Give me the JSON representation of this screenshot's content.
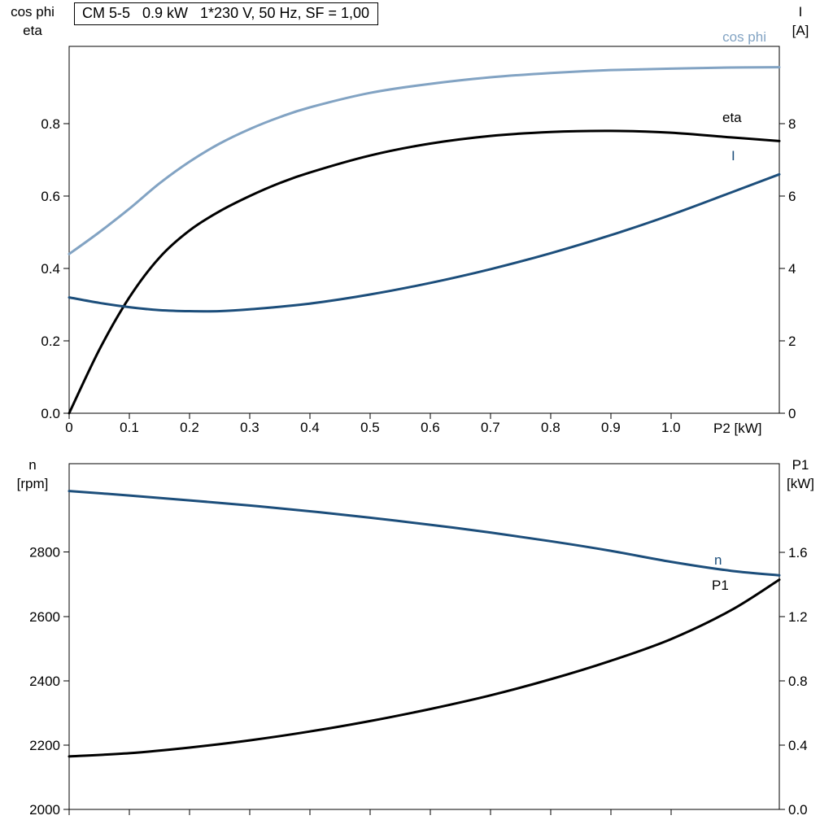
{
  "title_box": {
    "text": "CM 5-5   0.9 kW   1*230 V, 50 Hz, SF = 1,00"
  },
  "colors": {
    "cos_phi": "#82a3c3",
    "eta": "#000000",
    "current": "#1c4e7b",
    "speed": "#1c4e7b",
    "p1": "#000000",
    "axis": "#000000"
  },
  "top_chart": {
    "axis_titles": {
      "left": [
        "cos phi",
        "eta"
      ],
      "right": [
        "I",
        "[A]"
      ],
      "x": "P2 [kW]"
    },
    "curve_labels": {
      "cos_phi": "cos phi",
      "eta": "eta",
      "current": "I"
    }
  },
  "bottom_chart": {
    "axis_titles": {
      "left": [
        "n",
        "[rpm]"
      ],
      "right": [
        "P1",
        "[kW]"
      ]
    },
    "curve_labels": {
      "speed": "n",
      "input_power": "P1"
    }
  },
  "chart_data": [
    {
      "type": "line",
      "title": "CM 5-5 0.9 kW 1*230 V, 50 Hz, SF = 1,00",
      "xlabel": "P2 [kW]",
      "x_range": [
        0,
        1.18
      ],
      "x_ticks": [
        0,
        0.1,
        0.2,
        0.3,
        0.4,
        0.5,
        0.6,
        0.7,
        0.8,
        0.9,
        1.0
      ],
      "x_tick_labels": [
        "0",
        "0.1",
        "0.2",
        "0.3",
        "0.4",
        "0.5",
        "0.6",
        "0.7",
        "0.8",
        "0.9",
        "1.0"
      ],
      "grid": false,
      "left_axis": {
        "label": "cos phi / eta",
        "range": [
          0,
          1.0135
        ],
        "ticks": [
          0,
          0.2,
          0.4,
          0.6,
          0.8
        ],
        "tick_labels": [
          "0.0",
          "0.2",
          "0.4",
          "0.6",
          "0.8"
        ]
      },
      "right_axis": {
        "label": "I [A]",
        "range": [
          0,
          10.135
        ],
        "ticks": [
          0,
          2,
          4,
          6,
          8
        ],
        "tick_labels": [
          "0",
          "2",
          "4",
          "6",
          "8"
        ]
      },
      "series": [
        {
          "name": "cos phi",
          "axis": "left",
          "color_key": "cos_phi",
          "x": [
            0,
            0.05,
            0.1,
            0.15,
            0.2,
            0.25,
            0.3,
            0.35,
            0.4,
            0.5,
            0.6,
            0.7,
            0.8,
            0.9,
            1.0,
            1.1,
            1.18
          ],
          "y": [
            0.44,
            0.5,
            0.565,
            0.635,
            0.695,
            0.745,
            0.785,
            0.818,
            0.845,
            0.885,
            0.91,
            0.928,
            0.94,
            0.948,
            0.952,
            0.955,
            0.956
          ]
        },
        {
          "name": "eta",
          "axis": "left",
          "color_key": "eta",
          "x": [
            0,
            0.05,
            0.1,
            0.15,
            0.2,
            0.25,
            0.3,
            0.35,
            0.4,
            0.5,
            0.6,
            0.7,
            0.8,
            0.9,
            1.0,
            1.1,
            1.18
          ],
          "y": [
            0,
            0.175,
            0.32,
            0.43,
            0.505,
            0.558,
            0.6,
            0.636,
            0.665,
            0.712,
            0.745,
            0.766,
            0.777,
            0.78,
            0.775,
            0.762,
            0.752
          ]
        },
        {
          "name": "I",
          "axis": "right",
          "color_key": "current",
          "x": [
            0,
            0.05,
            0.1,
            0.15,
            0.2,
            0.25,
            0.3,
            0.4,
            0.5,
            0.6,
            0.7,
            0.8,
            0.9,
            1.0,
            1.1,
            1.18
          ],
          "y": [
            3.2,
            3.05,
            2.93,
            2.85,
            2.82,
            2.82,
            2.87,
            3.03,
            3.28,
            3.6,
            3.98,
            4.42,
            4.92,
            5.48,
            6.1,
            6.6
          ]
        }
      ]
    },
    {
      "type": "line",
      "title": "",
      "xlabel": "",
      "x_range": [
        0,
        1.18
      ],
      "x_ticks": [
        0,
        0.1,
        0.2,
        0.3,
        0.4,
        0.5,
        0.6,
        0.7,
        0.8,
        0.9,
        1.0
      ],
      "x_tick_labels": [],
      "grid": false,
      "left_axis": {
        "label": "n [rpm]",
        "range": [
          2000,
          3075
        ],
        "ticks": [
          2000,
          2200,
          2400,
          2600,
          2800
        ],
        "tick_labels": [
          "2000",
          "2200",
          "2400",
          "2600",
          "2800"
        ]
      },
      "right_axis": {
        "label": "P1 [kW]",
        "range": [
          0,
          2.152
        ],
        "ticks": [
          0,
          0.4,
          0.8,
          1.2,
          1.6
        ],
        "tick_labels": [
          "0.0",
          "0.4",
          "0.8",
          "1.2",
          "1.6"
        ]
      },
      "series": [
        {
          "name": "n",
          "axis": "left",
          "color_key": "speed",
          "x": [
            0,
            0.1,
            0.2,
            0.3,
            0.4,
            0.5,
            0.6,
            0.7,
            0.8,
            0.9,
            1.0,
            1.1,
            1.18
          ],
          "y": [
            2990,
            2976,
            2961,
            2945,
            2927,
            2907,
            2885,
            2861,
            2834,
            2804,
            2770,
            2742,
            2728
          ]
        },
        {
          "name": "P1",
          "axis": "right",
          "color_key": "p1",
          "x": [
            0,
            0.1,
            0.2,
            0.3,
            0.4,
            0.5,
            0.6,
            0.7,
            0.8,
            0.9,
            1.0,
            1.1,
            1.18
          ],
          "y": [
            0.33,
            0.35,
            0.385,
            0.43,
            0.485,
            0.55,
            0.625,
            0.71,
            0.81,
            0.925,
            1.06,
            1.24,
            1.43
          ]
        }
      ]
    }
  ]
}
